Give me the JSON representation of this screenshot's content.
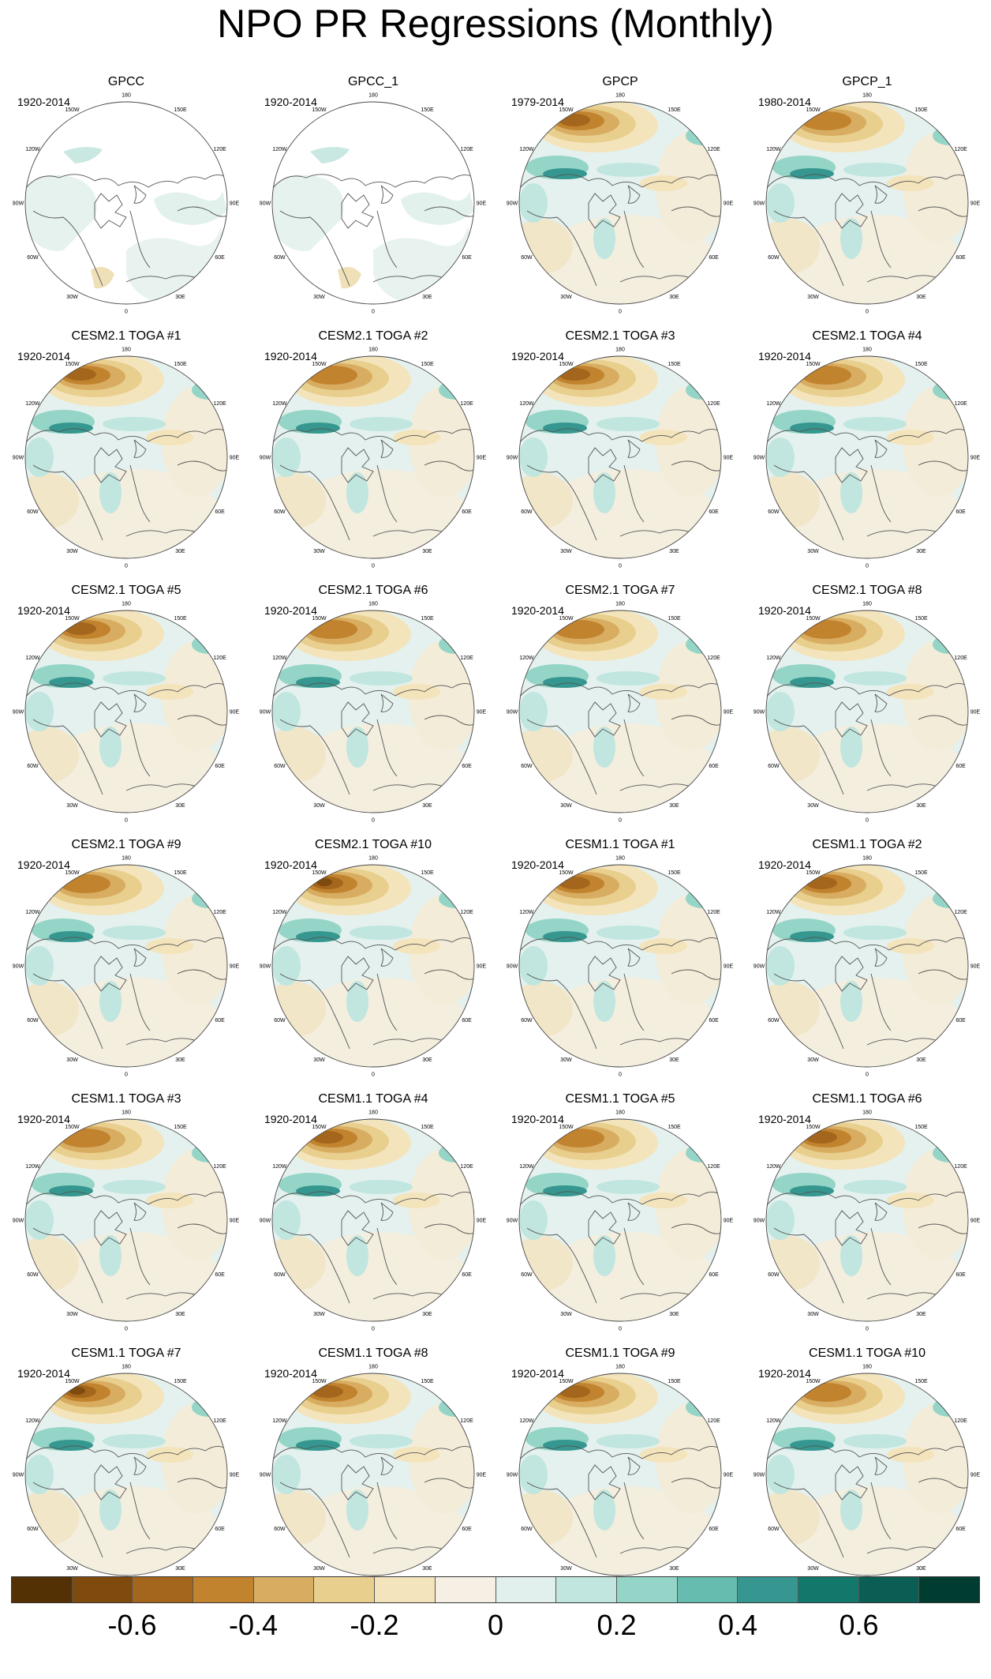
{
  "title": "NPO PR Regressions (Monthly)",
  "panels": [
    {
      "title": "GPCC",
      "period": "1920-2014",
      "missing": true,
      "dry": 0.15
    },
    {
      "title": "GPCC_1",
      "period": "1920-2014",
      "missing": true,
      "dry": 0.1
    },
    {
      "title": "GPCP",
      "period": "1979-2014",
      "missing": false,
      "dry": 0.75
    },
    {
      "title": "GPCP_1",
      "period": "1980-2014",
      "missing": false,
      "dry": 0.7
    },
    {
      "title": "CESM2.1 TOGA #1",
      "period": "1920-2014",
      "missing": false,
      "dry": 0.75
    },
    {
      "title": "CESM2.1 TOGA #2",
      "period": "1920-2014",
      "missing": false,
      "dry": 0.7
    },
    {
      "title": "CESM2.1 TOGA #3",
      "period": "1920-2014",
      "missing": false,
      "dry": 0.75
    },
    {
      "title": "CESM2.1 TOGA #4",
      "period": "1920-2014",
      "missing": false,
      "dry": 0.65
    },
    {
      "title": "CESM2.1 TOGA #5",
      "period": "1920-2014",
      "missing": false,
      "dry": 0.8
    },
    {
      "title": "CESM2.1 TOGA #6",
      "period": "1920-2014",
      "missing": false,
      "dry": 0.65
    },
    {
      "title": "CESM2.1 TOGA #7",
      "period": "1920-2014",
      "missing": false,
      "dry": 0.7
    },
    {
      "title": "CESM2.1 TOGA #8",
      "period": "1920-2014",
      "missing": false,
      "dry": 0.65
    },
    {
      "title": "CESM2.1 TOGA #9",
      "period": "1920-2014",
      "missing": false,
      "dry": 0.7
    },
    {
      "title": "CESM2.1 TOGA #10",
      "period": "1920-2014",
      "missing": false,
      "dry": 0.85
    },
    {
      "title": "CESM1.1 TOGA #1",
      "period": "1920-2014",
      "missing": false,
      "dry": 0.75
    },
    {
      "title": "CESM1.1 TOGA #2",
      "period": "1920-2014",
      "missing": false,
      "dry": 0.8
    },
    {
      "title": "CESM1.1 TOGA #3",
      "period": "1920-2014",
      "missing": false,
      "dry": 0.7
    },
    {
      "title": "CESM1.1 TOGA #4",
      "period": "1920-2014",
      "missing": false,
      "dry": 0.75
    },
    {
      "title": "CESM1.1 TOGA #5",
      "period": "1920-2014",
      "missing": false,
      "dry": 0.65
    },
    {
      "title": "CESM1.1 TOGA #6",
      "period": "1920-2014",
      "missing": false,
      "dry": 0.8
    },
    {
      "title": "CESM1.1 TOGA #7",
      "period": "1920-2014",
      "missing": false,
      "dry": 0.9
    },
    {
      "title": "CESM1.1 TOGA #8",
      "period": "1920-2014",
      "missing": false,
      "dry": 0.8
    },
    {
      "title": "CESM1.1 TOGA #9",
      "period": "1920-2014",
      "missing": false,
      "dry": 0.75
    },
    {
      "title": "CESM1.1 TOGA #10",
      "period": "1920-2014",
      "missing": false,
      "dry": 0.7
    }
  ],
  "lon_labels": [
    "180",
    "150E",
    "120E",
    "90E",
    "60E",
    "30E",
    "0",
    "30W",
    "60W",
    "90W",
    "120W",
    "150W"
  ],
  "colorbar": {
    "colors": [
      "#543005",
      "#7e4a0d",
      "#a4661c",
      "#c2832f",
      "#d8ad61",
      "#e8cf8e",
      "#f4e4bc",
      "#f5f0e3",
      "#e1f0ec",
      "#c0e6df",
      "#94d5c7",
      "#66bdaf",
      "#35978f",
      "#13786c",
      "#0a5e54",
      "#003c30"
    ],
    "labels": [
      {
        "text": "-0.6",
        "value": -0.6
      },
      {
        "text": "-0.4",
        "value": -0.4
      },
      {
        "text": "-0.2",
        "value": -0.2
      },
      {
        "text": "0",
        "value": 0
      },
      {
        "text": "0.2",
        "value": 0.2
      },
      {
        "text": "0.4",
        "value": 0.4
      },
      {
        "text": "0.6",
        "value": 0.6
      }
    ],
    "min": -0.8,
    "max": 0.8
  }
}
